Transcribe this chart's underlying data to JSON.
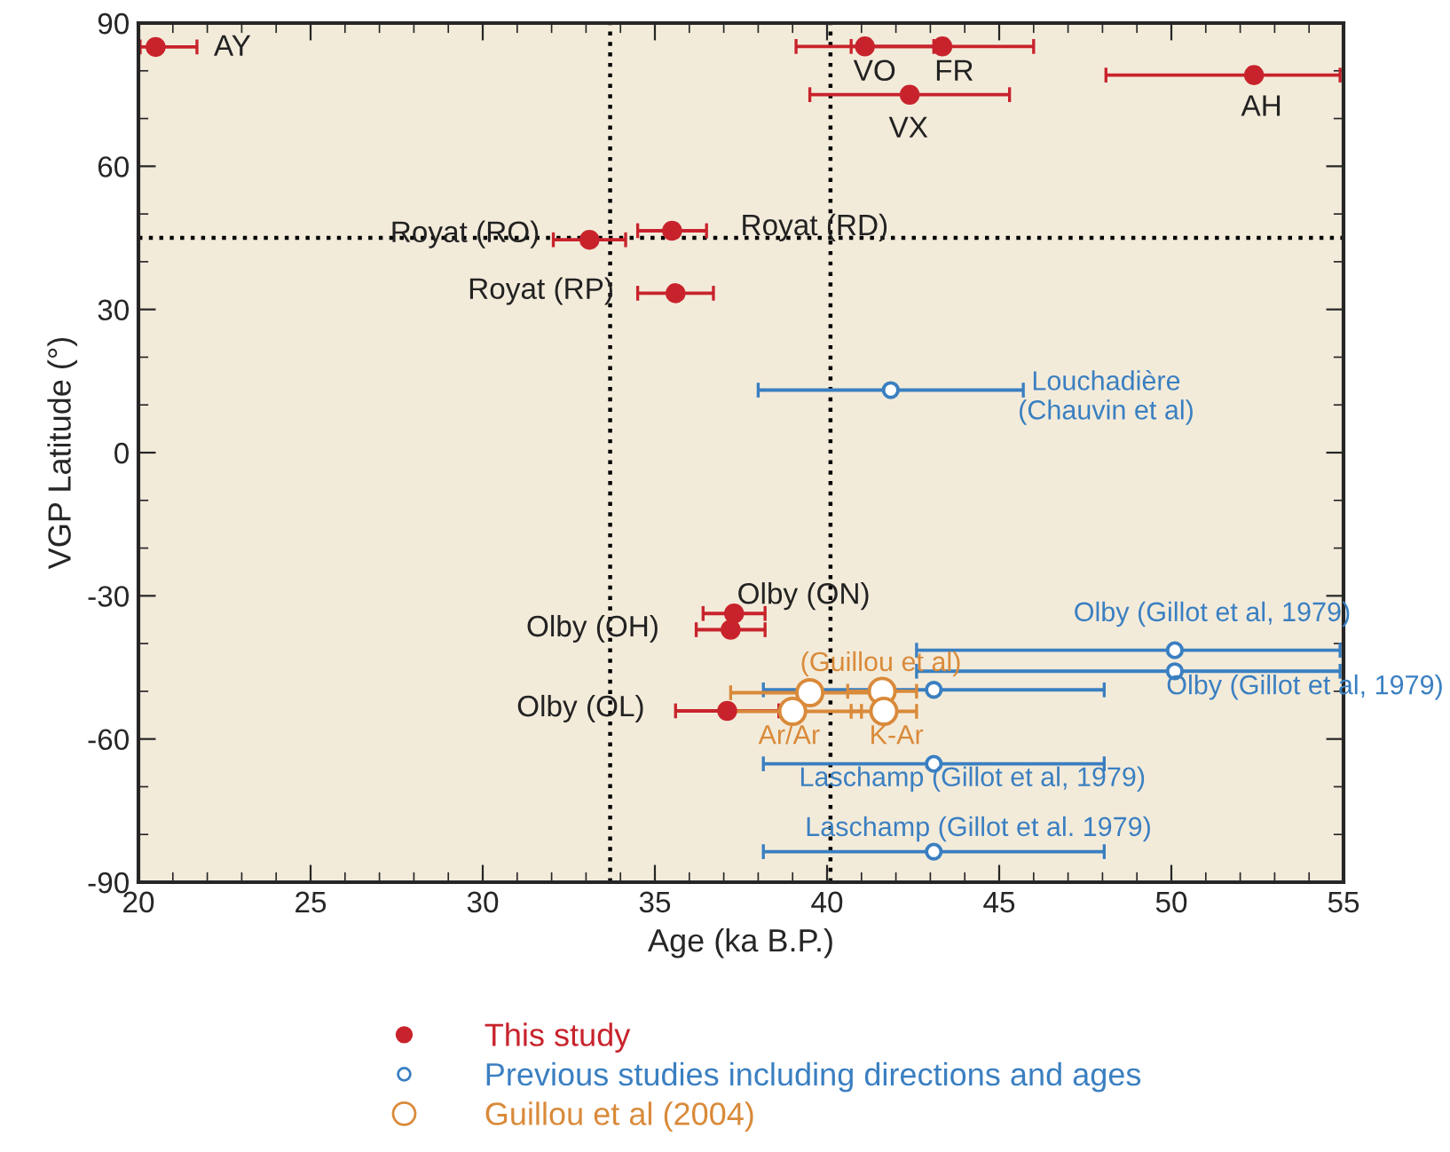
{
  "chart_data": {
    "type": "scatter",
    "xlabel": "Age (ka B.P.)",
    "ylabel": "VGP Latitude (°)",
    "xlim": [
      20,
      55
    ],
    "xticks": [
      20,
      25,
      30,
      35,
      40,
      45,
      50,
      55
    ],
    "ylim": [
      -90,
      90
    ],
    "yticks": [
      -90,
      -60,
      -30,
      0,
      30,
      60,
      90
    ],
    "grid": false,
    "legend": "bottom",
    "marker": "circle",
    "series": [
      {
        "name": "This study",
        "color": "#c8232c",
        "x": [
          20.5,
          33.1,
          35.5,
          35.6,
          41.1,
          43.35,
          42.4,
          52.4,
          37.3,
          37.2,
          37.1
        ],
        "values": [
          85,
          44.6,
          46.5,
          33.4,
          85.1,
          85.1,
          75,
          79.1,
          -33.7,
          -37.1,
          -54.1
        ],
        "xerrors": [
          [
            20.05,
            21.7
          ],
          1.05,
          1.0,
          1.1,
          2.0,
          2.65,
          2.9,
          [
            48.1,
            54.9
          ],
          0.9,
          1.0,
          1.5
        ]
      },
      {
        "name": "Previous studies including directions and ages",
        "color": "#3a7fc1",
        "x": [
          41.85,
          50.1,
          50.1,
          43.1,
          43.1,
          43.1
        ],
        "values": [
          13.1,
          -41.4,
          -45.8,
          -49.7,
          -65.2,
          -83.6
        ],
        "xerrors": [
          3.85,
          [
            42.6,
            54.9
          ],
          [
            42.6,
            54.9
          ],
          4.95,
          4.95,
          4.95
        ]
      },
      {
        "name": "Guillou et al (2004)",
        "color": "#d98a3a",
        "x": [
          39.5,
          41.6,
          39.0,
          41.65
        ],
        "values": [
          -50.3,
          -50.0,
          -54.2,
          -54.2
        ],
        "xerrors": [
          2.3,
          1.0,
          2.0,
          0.95
        ]
      }
    ],
    "ref_lines": [
      {
        "axis": "x",
        "value": 33.7,
        "line_style": "dotted",
        "color": "#000000"
      },
      {
        "axis": "x",
        "value": 40.1,
        "line_style": "dotted",
        "color": "#000000"
      },
      {
        "axis": "y",
        "value": 45,
        "line_style": "dotted",
        "color": "#000000"
      }
    ],
    "annotations": [
      "AY",
      "VO",
      "FR",
      "VX",
      "AH",
      "Royat (RO)",
      "Royat (RD)",
      "Royat (RP)",
      "Louchadière\n(Chauvin et al)",
      "Olby (ON)",
      "Olby (OH)",
      "Olby (OL)",
      "Olby (Gillot et al, 1979)",
      "Olby (Gillot et al, 1979)",
      "(Guillou et al)",
      "Ar/Ar",
      "K-Ar",
      "Laschamp (Gillot et al, 1979)",
      "Laschamp (Gillot et al. 1979)"
    ]
  }
}
